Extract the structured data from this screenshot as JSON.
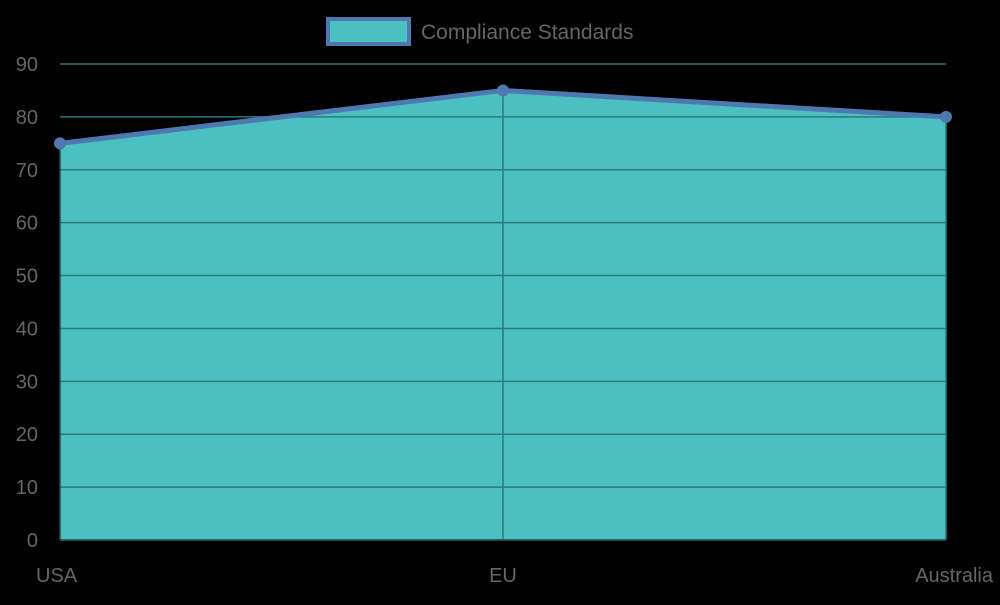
{
  "chart_data": {
    "type": "area",
    "title": "",
    "categories": [
      "USA",
      "EU",
      "Australia"
    ],
    "series": [
      {
        "name": "Compliance Standards",
        "values": [
          75,
          85,
          80
        ]
      }
    ],
    "xlabel": "",
    "ylabel": "",
    "ylim": [
      0,
      90
    ],
    "yticks": [
      0,
      10,
      20,
      30,
      40,
      50,
      60,
      70,
      80,
      90
    ],
    "grid": true,
    "legend_position": "top"
  },
  "colors": {
    "fill": "#4BC0C0",
    "line": "#4E79B0",
    "grid": "#2a7a78",
    "text": "#666666",
    "background": "#000000"
  }
}
